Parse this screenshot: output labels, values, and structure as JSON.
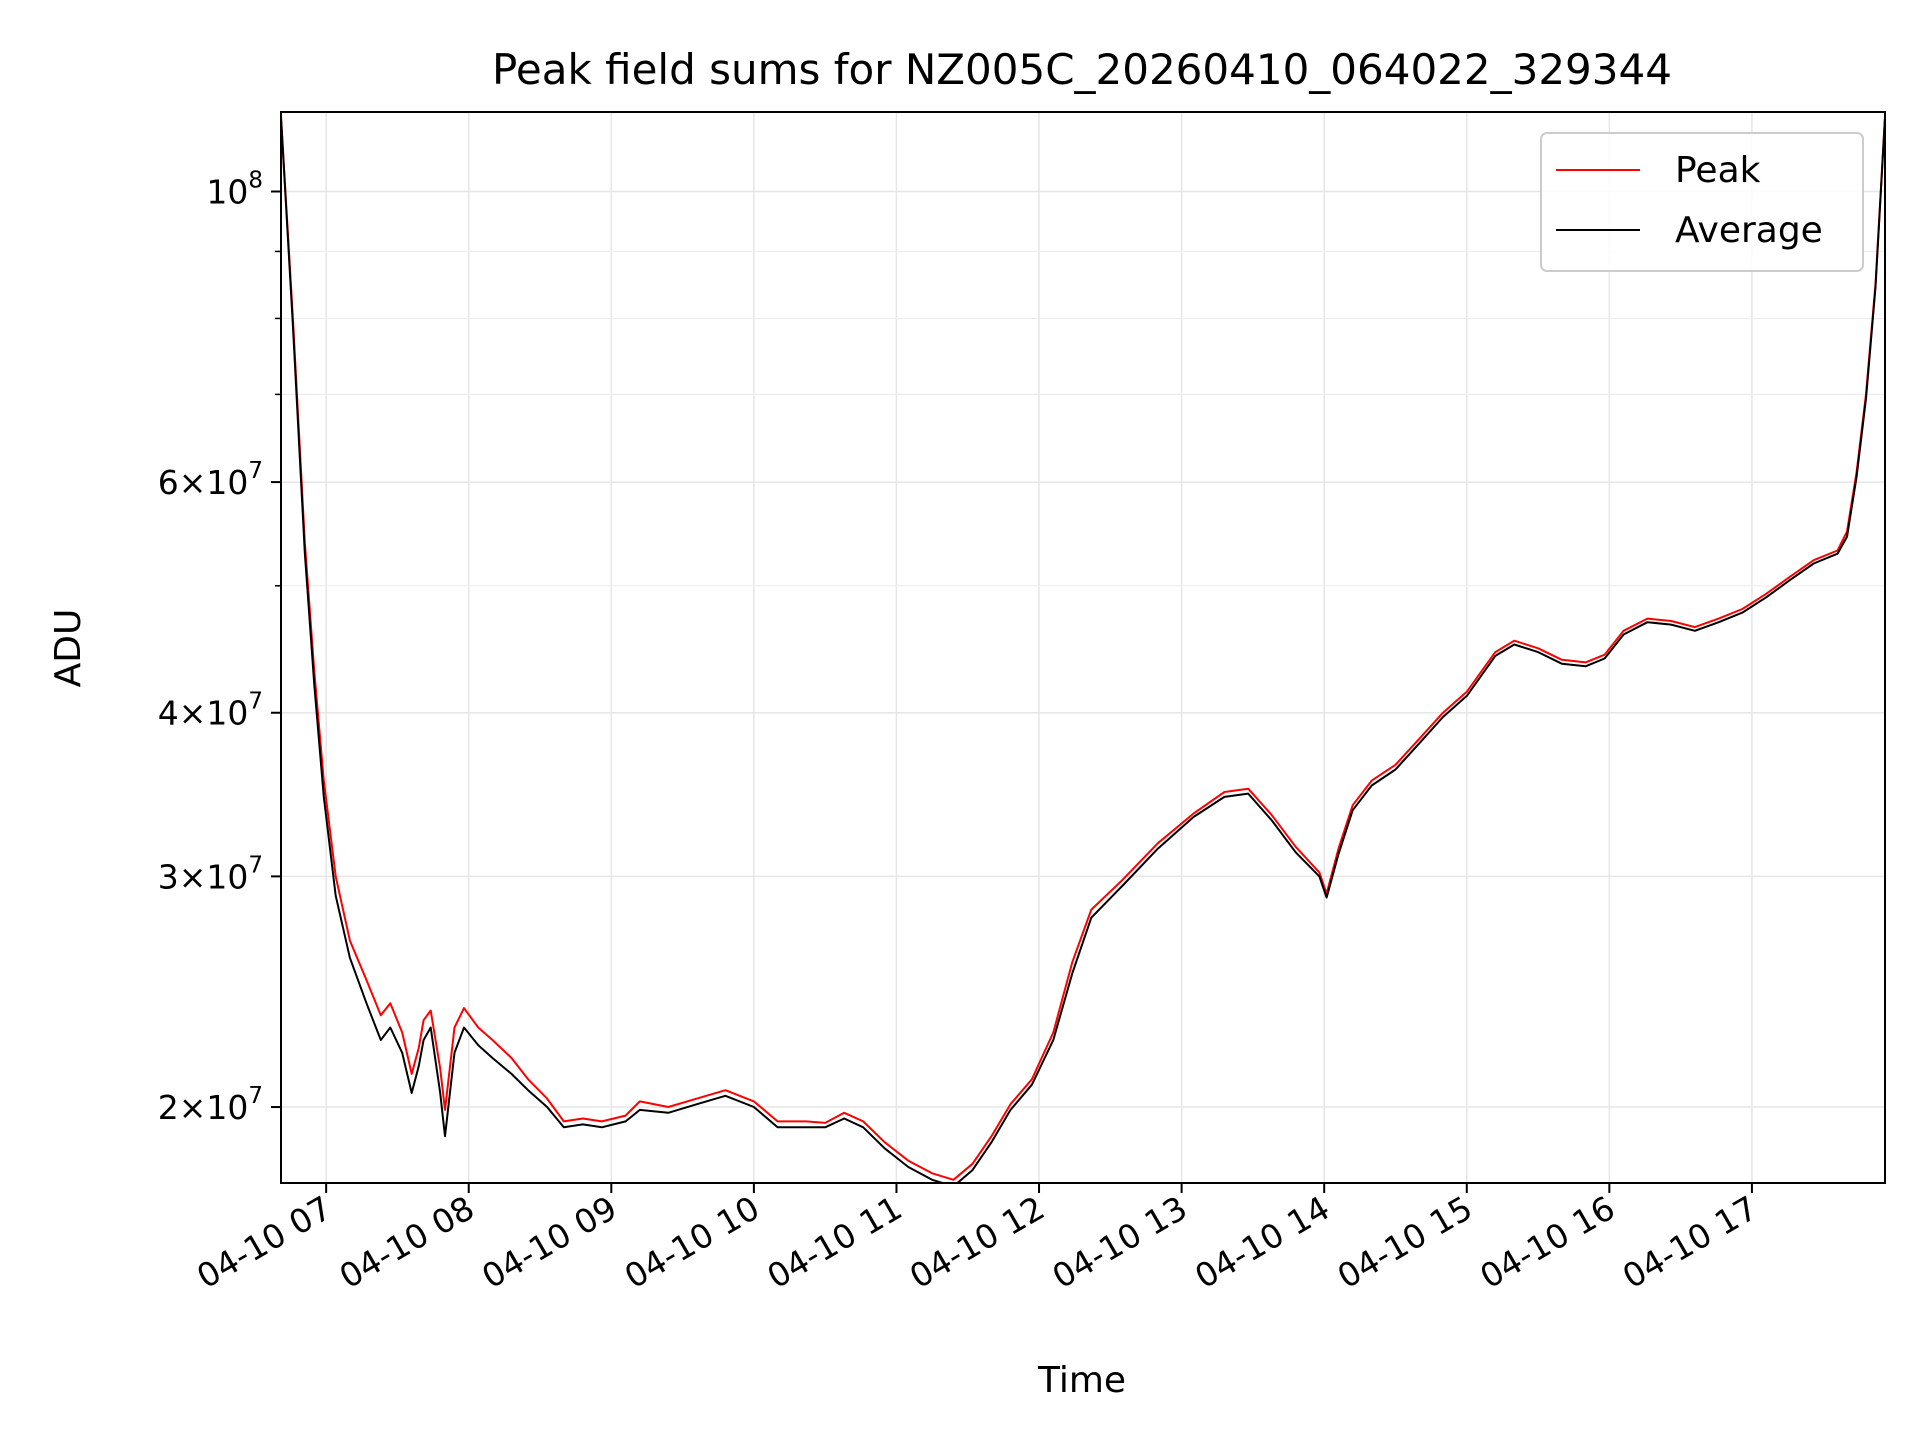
{
  "chart_data": {
    "type": "line",
    "title": "Peak field sums for NZ005C_20260410_064022_329344",
    "xlabel": "Time",
    "ylabel": "ADU",
    "yscale": "log",
    "grid": true,
    "legend_position": "top-right",
    "xlim": [
      "2026-04-10T06:41",
      "2026-04-10T17:56"
    ],
    "ylim": [
      17500000,
      115000000
    ],
    "x_ticks": [
      {
        "value": "2026-04-10T07:00",
        "label": "04-10 07"
      },
      {
        "value": "2026-04-10T08:00",
        "label": "04-10 08"
      },
      {
        "value": "2026-04-10T09:00",
        "label": "04-10 09"
      },
      {
        "value": "2026-04-10T10:00",
        "label": "04-10 10"
      },
      {
        "value": "2026-04-10T11:00",
        "label": "04-10 11"
      },
      {
        "value": "2026-04-10T12:00",
        "label": "04-10 12"
      },
      {
        "value": "2026-04-10T13:00",
        "label": "04-10 13"
      },
      {
        "value": "2026-04-10T14:00",
        "label": "04-10 14"
      },
      {
        "value": "2026-04-10T15:00",
        "label": "04-10 15"
      },
      {
        "value": "2026-04-10T16:00",
        "label": "04-10 16"
      },
      {
        "value": "2026-04-10T17:00",
        "label": "04-10 17"
      }
    ],
    "y_ticks": [
      {
        "value": 20000000,
        "mant": "2",
        "exp": "7"
      },
      {
        "value": 30000000,
        "mant": "3",
        "exp": "7"
      },
      {
        "value": 40000000,
        "mant": "4",
        "exp": "7"
      },
      {
        "value": 60000000,
        "mant": "6",
        "exp": "7"
      },
      {
        "value": 100000000,
        "mant": "",
        "exp": "8"
      }
    ],
    "y_minor_ticks": [
      50000000,
      70000000,
      80000000,
      90000000
    ],
    "series": [
      {
        "name": "Peak",
        "color": "#ff0000",
        "points": [
          [
            "2026-04-10T06:41",
            114000000
          ],
          [
            "2026-04-10T06:46",
            80000000
          ],
          [
            "2026-04-10T06:51",
            54000000
          ],
          [
            "2026-04-10T06:55",
            43000000
          ],
          [
            "2026-04-10T06:59",
            35500000
          ],
          [
            "2026-04-10T07:04",
            30000000
          ],
          [
            "2026-04-10T07:10",
            26800000
          ],
          [
            "2026-04-10T07:17",
            25000000
          ],
          [
            "2026-04-10T07:23",
            23500000
          ],
          [
            "2026-04-10T07:27",
            24000000
          ],
          [
            "2026-04-10T07:32",
            22800000
          ],
          [
            "2026-04-10T07:36",
            21200000
          ],
          [
            "2026-04-10T07:39",
            22200000
          ],
          [
            "2026-04-10T07:41",
            23300000
          ],
          [
            "2026-04-10T07:44",
            23700000
          ],
          [
            "2026-04-10T07:48",
            21400000
          ],
          [
            "2026-04-10T07:50",
            19900000
          ],
          [
            "2026-04-10T07:54",
            23000000
          ],
          [
            "2026-04-10T07:58",
            23800000
          ],
          [
            "2026-04-10T08:04",
            23000000
          ],
          [
            "2026-04-10T08:10",
            22500000
          ],
          [
            "2026-04-10T08:18",
            21800000
          ],
          [
            "2026-04-10T08:25",
            21000000
          ],
          [
            "2026-04-10T08:33",
            20300000
          ],
          [
            "2026-04-10T08:40",
            19500000
          ],
          [
            "2026-04-10T08:48",
            19600000
          ],
          [
            "2026-04-10T08:56",
            19500000
          ],
          [
            "2026-04-10T09:06",
            19700000
          ],
          [
            "2026-04-10T09:12",
            20200000
          ],
          [
            "2026-04-10T09:24",
            20000000
          ],
          [
            "2026-04-10T09:36",
            20300000
          ],
          [
            "2026-04-10T09:48",
            20600000
          ],
          [
            "2026-04-10T10:00",
            20200000
          ],
          [
            "2026-04-10T10:10",
            19500000
          ],
          [
            "2026-04-10T10:22",
            19500000
          ],
          [
            "2026-04-10T10:30",
            19450000
          ],
          [
            "2026-04-10T10:38",
            19800000
          ],
          [
            "2026-04-10T10:46",
            19500000
          ],
          [
            "2026-04-10T10:55",
            18800000
          ],
          [
            "2026-04-10T11:05",
            18200000
          ],
          [
            "2026-04-10T11:15",
            17800000
          ],
          [
            "2026-04-10T11:24",
            17600000
          ],
          [
            "2026-04-10T11:32",
            18100000
          ],
          [
            "2026-04-10T11:40",
            19000000
          ],
          [
            "2026-04-10T11:48",
            20100000
          ],
          [
            "2026-04-10T11:57",
            21000000
          ],
          [
            "2026-04-10T12:06",
            22800000
          ],
          [
            "2026-04-10T12:14",
            25800000
          ],
          [
            "2026-04-10T12:22",
            28300000
          ],
          [
            "2026-04-10T12:35",
            29800000
          ],
          [
            "2026-04-10T12:50",
            31800000
          ],
          [
            "2026-04-10T13:05",
            33500000
          ],
          [
            "2026-04-10T13:18",
            34800000
          ],
          [
            "2026-04-10T13:28",
            35000000
          ],
          [
            "2026-04-10T13:38",
            33400000
          ],
          [
            "2026-04-10T13:48",
            31600000
          ],
          [
            "2026-04-10T13:58",
            30200000
          ],
          [
            "2026-04-10T14:01",
            29100000
          ],
          [
            "2026-04-10T14:06",
            31500000
          ],
          [
            "2026-04-10T14:12",
            34000000
          ],
          [
            "2026-04-10T14:20",
            35500000
          ],
          [
            "2026-04-10T14:30",
            36500000
          ],
          [
            "2026-04-10T14:40",
            38200000
          ],
          [
            "2026-04-10T14:50",
            40000000
          ],
          [
            "2026-04-10T15:00",
            41500000
          ],
          [
            "2026-04-10T15:12",
            44500000
          ],
          [
            "2026-04-10T15:20",
            45400000
          ],
          [
            "2026-04-10T15:30",
            44800000
          ],
          [
            "2026-04-10T15:40",
            43900000
          ],
          [
            "2026-04-10T15:50",
            43700000
          ],
          [
            "2026-04-10T15:58",
            44300000
          ],
          [
            "2026-04-10T16:06",
            46200000
          ],
          [
            "2026-04-10T16:16",
            47200000
          ],
          [
            "2026-04-10T16:26",
            47000000
          ],
          [
            "2026-04-10T16:36",
            46500000
          ],
          [
            "2026-04-10T16:46",
            47200000
          ],
          [
            "2026-04-10T16:56",
            48000000
          ],
          [
            "2026-04-10T17:06",
            49300000
          ],
          [
            "2026-04-10T17:16",
            50800000
          ],
          [
            "2026-04-10T17:26",
            52300000
          ],
          [
            "2026-04-10T17:36",
            53200000
          ],
          [
            "2026-04-10T17:40",
            55000000
          ],
          [
            "2026-04-10T17:44",
            61000000
          ],
          [
            "2026-04-10T17:48",
            70000000
          ],
          [
            "2026-04-10T17:52",
            85000000
          ],
          [
            "2026-04-10T17:56",
            114000000
          ]
        ]
      },
      {
        "name": "Average",
        "color": "#000000",
        "points": [
          [
            "2026-04-10T06:41",
            114000000
          ],
          [
            "2026-04-10T06:46",
            79000000
          ],
          [
            "2026-04-10T06:51",
            53000000
          ],
          [
            "2026-04-10T06:55",
            42000000
          ],
          [
            "2026-04-10T06:59",
            34500000
          ],
          [
            "2026-04-10T07:04",
            29000000
          ],
          [
            "2026-04-10T07:10",
            26000000
          ],
          [
            "2026-04-10T07:17",
            24000000
          ],
          [
            "2026-04-10T07:23",
            22500000
          ],
          [
            "2026-04-10T07:27",
            23000000
          ],
          [
            "2026-04-10T07:32",
            22000000
          ],
          [
            "2026-04-10T07:36",
            20500000
          ],
          [
            "2026-04-10T07:39",
            21500000
          ],
          [
            "2026-04-10T07:41",
            22500000
          ],
          [
            "2026-04-10T07:44",
            23000000
          ],
          [
            "2026-04-10T07:48",
            20500000
          ],
          [
            "2026-04-10T07:50",
            19000000
          ],
          [
            "2026-04-10T07:54",
            22000000
          ],
          [
            "2026-04-10T07:58",
            23000000
          ],
          [
            "2026-04-10T08:04",
            22300000
          ],
          [
            "2026-04-10T08:10",
            21800000
          ],
          [
            "2026-04-10T08:18",
            21200000
          ],
          [
            "2026-04-10T08:25",
            20600000
          ],
          [
            "2026-04-10T08:33",
            20000000
          ],
          [
            "2026-04-10T08:40",
            19300000
          ],
          [
            "2026-04-10T08:48",
            19400000
          ],
          [
            "2026-04-10T08:56",
            19300000
          ],
          [
            "2026-04-10T09:06",
            19500000
          ],
          [
            "2026-04-10T09:12",
            19900000
          ],
          [
            "2026-04-10T09:24",
            19800000
          ],
          [
            "2026-04-10T09:36",
            20100000
          ],
          [
            "2026-04-10T09:48",
            20400000
          ],
          [
            "2026-04-10T10:00",
            20000000
          ],
          [
            "2026-04-10T10:10",
            19300000
          ],
          [
            "2026-04-10T10:22",
            19300000
          ],
          [
            "2026-04-10T10:30",
            19300000
          ],
          [
            "2026-04-10T10:38",
            19600000
          ],
          [
            "2026-04-10T10:46",
            19300000
          ],
          [
            "2026-04-10T10:55",
            18600000
          ],
          [
            "2026-04-10T11:05",
            18000000
          ],
          [
            "2026-04-10T11:15",
            17600000
          ],
          [
            "2026-04-10T11:24",
            17400000
          ],
          [
            "2026-04-10T11:32",
            17900000
          ],
          [
            "2026-04-10T11:40",
            18800000
          ],
          [
            "2026-04-10T11:48",
            19900000
          ],
          [
            "2026-04-10T11:57",
            20800000
          ],
          [
            "2026-04-10T12:06",
            22500000
          ],
          [
            "2026-04-10T12:14",
            25300000
          ],
          [
            "2026-04-10T12:22",
            27900000
          ],
          [
            "2026-04-10T12:35",
            29500000
          ],
          [
            "2026-04-10T12:50",
            31500000
          ],
          [
            "2026-04-10T13:05",
            33300000
          ],
          [
            "2026-04-10T13:18",
            34500000
          ],
          [
            "2026-04-10T13:28",
            34700000
          ],
          [
            "2026-04-10T13:38",
            33100000
          ],
          [
            "2026-04-10T13:48",
            31300000
          ],
          [
            "2026-04-10T13:58",
            30000000
          ],
          [
            "2026-04-10T14:01",
            28900000
          ],
          [
            "2026-04-10T14:06",
            31200000
          ],
          [
            "2026-04-10T14:12",
            33700000
          ],
          [
            "2026-04-10T14:20",
            35200000
          ],
          [
            "2026-04-10T14:30",
            36200000
          ],
          [
            "2026-04-10T14:40",
            37900000
          ],
          [
            "2026-04-10T14:50",
            39700000
          ],
          [
            "2026-04-10T15:00",
            41200000
          ],
          [
            "2026-04-10T15:12",
            44200000
          ],
          [
            "2026-04-10T15:20",
            45100000
          ],
          [
            "2026-04-10T15:30",
            44500000
          ],
          [
            "2026-04-10T15:40",
            43600000
          ],
          [
            "2026-04-10T15:50",
            43400000
          ],
          [
            "2026-04-10T15:58",
            44000000
          ],
          [
            "2026-04-10T16:06",
            45900000
          ],
          [
            "2026-04-10T16:16",
            46900000
          ],
          [
            "2026-04-10T16:26",
            46700000
          ],
          [
            "2026-04-10T16:36",
            46200000
          ],
          [
            "2026-04-10T16:46",
            46900000
          ],
          [
            "2026-04-10T16:56",
            47700000
          ],
          [
            "2026-04-10T17:06",
            49000000
          ],
          [
            "2026-04-10T17:16",
            50500000
          ],
          [
            "2026-04-10T17:26",
            52000000
          ],
          [
            "2026-04-10T17:36",
            52900000
          ],
          [
            "2026-04-10T17:40",
            54500000
          ],
          [
            "2026-04-10T17:44",
            60500000
          ],
          [
            "2026-04-10T17:48",
            69500000
          ],
          [
            "2026-04-10T17:52",
            84500000
          ],
          [
            "2026-04-10T17:56",
            114000000
          ]
        ]
      }
    ]
  }
}
